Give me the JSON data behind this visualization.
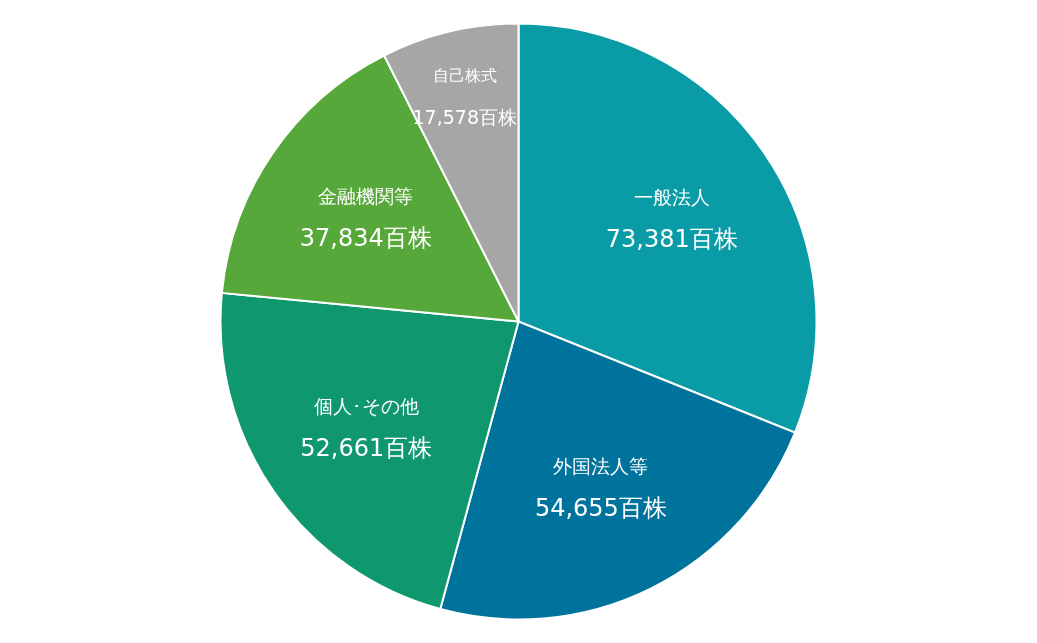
{
  "chart_data": {
    "type": "pie",
    "categories": [
      "一般法人",
      "外国法人等",
      "個人･その他",
      "金融機関等",
      "自己株式"
    ],
    "values": [
      73381,
      54655,
      52661,
      37834,
      17578
    ],
    "value_labels": [
      "73,381百株",
      "54,655百株",
      "52,661百株",
      "37,834百株",
      "17,578百株"
    ],
    "colors": [
      "#0a9ca6",
      "#00739c",
      "#0f976e",
      "#57a83b",
      "#a6a6a6"
    ]
  }
}
